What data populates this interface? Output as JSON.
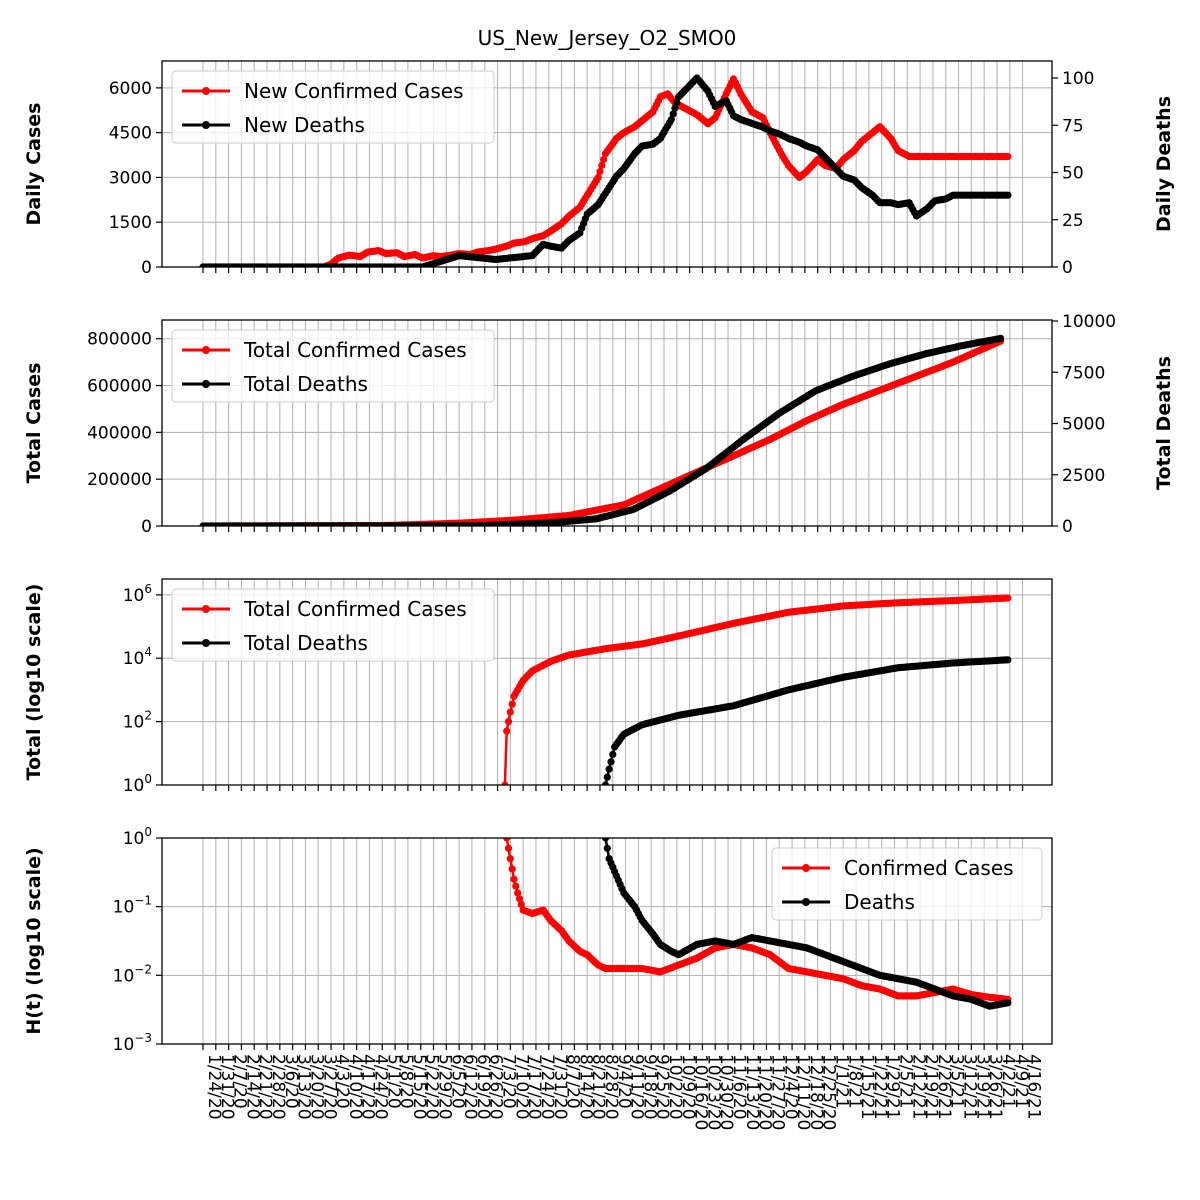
{
  "figure_title": "US_New_Jersey_O2_SMO0",
  "colors": {
    "cases": "#ff0000",
    "deaths": "#000000",
    "grid": "#b0b0b0"
  },
  "chart_data": [
    {
      "type": "line",
      "panel": "daily",
      "ylabel": "Daily Cases",
      "ylabel_right": "Daily Deaths",
      "left_ticks": [
        "0",
        "1500",
        "3000",
        "4500",
        "6000"
      ],
      "right_ticks": [
        "0",
        "25",
        "50",
        "75",
        "100"
      ],
      "ylim": [
        0,
        6900
      ],
      "ylim_right": [
        0,
        109
      ],
      "grid": true,
      "legend_position": "upper-left",
      "series": [
        {
          "name": "New Confirmed Cases",
          "axis": "left",
          "color": "#ff0000",
          "x_days": [
            0,
            66,
            70,
            74,
            80,
            86,
            90,
            96,
            100,
            106,
            110,
            116,
            120,
            126,
            130,
            136,
            140,
            146,
            150,
            156,
            160,
            166,
            170,
            176,
            180,
            186,
            190,
            196,
            200,
            206,
            210,
            216,
            220,
            226,
            230,
            236,
            240,
            246,
            250,
            254,
            258,
            264,
            270,
            276,
            280,
            286,
            290,
            294,
            300,
            306,
            310,
            316,
            320,
            326,
            330,
            336,
            340,
            346,
            350,
            356,
            360,
            366,
            370,
            376,
            380,
            386,
            390,
            396,
            400,
            406,
            410,
            416,
            420,
            426,
            430,
            436,
            440
          ],
          "values": [
            0,
            0,
            100,
            300,
            400,
            350,
            500,
            550,
            450,
            480,
            350,
            420,
            300,
            380,
            350,
            400,
            450,
            420,
            500,
            550,
            600,
            700,
            800,
            850,
            950,
            1050,
            1200,
            1450,
            1700,
            2000,
            2400,
            3000,
            3800,
            4300,
            4500,
            4700,
            4900,
            5200,
            5700,
            5800,
            5500,
            5300,
            5100,
            4800,
            5000,
            5800,
            6300,
            5800,
            5200,
            5000,
            4500,
            3800,
            3400,
            3000,
            3200,
            3600,
            3400,
            3300,
            3600,
            3900,
            4200,
            4500,
            4700,
            4300,
            3900,
            3700,
            3700,
            3700,
            3700,
            3700,
            3700,
            3700,
            3700,
            3700,
            3700,
            3700,
            3700
          ]
        },
        {
          "name": "New Deaths",
          "axis": "right",
          "color": "#000000",
          "x_days": [
            0,
            120,
            130,
            140,
            150,
            160,
            170,
            180,
            186,
            190,
            196,
            200,
            206,
            210,
            216,
            220,
            226,
            230,
            236,
            240,
            246,
            250,
            256,
            260,
            266,
            270,
            276,
            280,
            286,
            290,
            294,
            300,
            306,
            310,
            316,
            320,
            326,
            330,
            336,
            340,
            346,
            350,
            356,
            360,
            366,
            370,
            376,
            380,
            386,
            390,
            396,
            400,
            406,
            410,
            416,
            420,
            426,
            430,
            436,
            440
          ],
          "values": [
            0,
            0,
            3,
            6,
            5,
            4,
            5,
            6,
            12,
            11,
            10,
            14,
            18,
            28,
            33,
            39,
            48,
            52,
            60,
            64,
            65,
            68,
            78,
            90,
            96,
            100,
            93,
            85,
            88,
            80,
            78,
            76,
            74,
            72,
            70,
            68,
            66,
            64,
            62,
            58,
            52,
            48,
            46,
            42,
            38,
            34,
            34,
            33,
            34,
            27,
            31,
            35,
            36,
            38,
            38,
            38,
            38,
            38,
            38,
            38
          ]
        }
      ]
    },
    {
      "type": "line",
      "panel": "total",
      "ylabel": "Total Cases",
      "ylabel_right": "Total Deaths",
      "left_ticks": [
        "0",
        "200000",
        "400000",
        "600000",
        "800000"
      ],
      "right_ticks": [
        "0",
        "2500",
        "5000",
        "7500",
        "10000"
      ],
      "ylim": [
        0,
        880000
      ],
      "ylim_right": [
        0,
        10050
      ],
      "grid": true,
      "legend_position": "upper-left",
      "series": [
        {
          "name": "Total Confirmed Cases",
          "axis": "left",
          "color": "#ff0000",
          "x_days": [
            0,
            100,
            140,
            170,
            200,
            230,
            250,
            270,
            290,
            310,
            330,
            350,
            370,
            390,
            410,
            436
          ],
          "values": [
            0,
            2000,
            12000,
            25000,
            45000,
            90000,
            160000,
            230000,
            300000,
            370000,
            450000,
            520000,
            580000,
            640000,
            700000,
            790000
          ]
        },
        {
          "name": "Total Deaths",
          "axis": "right",
          "color": "#000000",
          "x_days": [
            0,
            150,
            190,
            215,
            235,
            255,
            275,
            295,
            315,
            335,
            355,
            375,
            395,
            415,
            436
          ],
          "values": [
            0,
            10,
            150,
            350,
            800,
            1700,
            2800,
            4200,
            5500,
            6600,
            7300,
            7900,
            8400,
            8800,
            9150
          ]
        }
      ]
    },
    {
      "type": "line",
      "panel": "log_total",
      "ylabel": "Total (log10 scale)",
      "scale": "log10",
      "left_ticks": [
        {
          "base": "10",
          "exp": "0"
        },
        {
          "base": "10",
          "exp": "2"
        },
        {
          "base": "10",
          "exp": "4"
        },
        {
          "base": "10",
          "exp": "6"
        }
      ],
      "ylim_log10": [
        0,
        6.5
      ],
      "grid": true,
      "legend_position": "upper-left",
      "series": [
        {
          "name": "Total Confirmed Cases",
          "color": "#ff0000",
          "x_days": [
            165,
            166,
            168,
            170,
            175,
            180,
            190,
            200,
            220,
            240,
            260,
            290,
            320,
            350,
            380,
            410,
            440
          ],
          "log10_values": [
            0,
            1.7,
            2.3,
            2.8,
            3.3,
            3.6,
            3.9,
            4.1,
            4.3,
            4.45,
            4.7,
            5.1,
            5.45,
            5.65,
            5.75,
            5.82,
            5.9
          ]
        },
        {
          "name": "Total Deaths",
          "color": "#000000",
          "x_days": [
            220,
            222,
            225,
            230,
            240,
            260,
            290,
            320,
            350,
            380,
            410,
            440
          ],
          "log10_values": [
            0,
            0.5,
            1.2,
            1.6,
            1.9,
            2.2,
            2.5,
            3.0,
            3.4,
            3.7,
            3.85,
            3.95
          ]
        }
      ]
    },
    {
      "type": "line",
      "panel": "h_t",
      "ylabel": "H(t) (log10 scale)",
      "scale": "log10",
      "left_ticks": [
        {
          "base": "10",
          "exp": "0"
        },
        {
          "base": "10",
          "exp": "−1"
        },
        {
          "base": "10",
          "exp": "−2"
        },
        {
          "base": "10",
          "exp": "−3"
        }
      ],
      "ylim_log10": [
        -3,
        0
      ],
      "grid": true,
      "legend_position": "upper-right",
      "series": [
        {
          "name": "Confirmed Cases",
          "color": "#ff0000",
          "x_days": [
            166,
            168,
            170,
            172,
            175,
            180,
            186,
            190,
            196,
            200,
            206,
            210,
            216,
            220,
            230,
            240,
            250,
            260,
            270,
            280,
            290,
            300,
            310,
            320,
            330,
            340,
            350,
            360,
            370,
            380,
            390,
            400,
            410,
            420,
            430,
            440
          ],
          "log10_values": [
            0,
            -0.3,
            -0.6,
            -0.8,
            -1.05,
            -1.1,
            -1.05,
            -1.2,
            -1.35,
            -1.5,
            -1.65,
            -1.7,
            -1.85,
            -1.9,
            -1.9,
            -1.9,
            -1.95,
            -1.85,
            -1.75,
            -1.6,
            -1.55,
            -1.6,
            -1.7,
            -1.9,
            -1.95,
            -2.0,
            -2.05,
            -2.15,
            -2.2,
            -2.3,
            -2.3,
            -2.25,
            -2.2,
            -2.28,
            -2.32,
            -2.35
          ]
        },
        {
          "name": "Deaths",
          "color": "#000000",
          "x_days": [
            220,
            222,
            226,
            230,
            236,
            240,
            246,
            250,
            256,
            260,
            270,
            280,
            290,
            300,
            310,
            320,
            330,
            340,
            350,
            360,
            370,
            380,
            390,
            400,
            410,
            420,
            430,
            440
          ],
          "log10_values": [
            0,
            -0.3,
            -0.55,
            -0.8,
            -1.0,
            -1.2,
            -1.4,
            -1.55,
            -1.65,
            -1.7,
            -1.55,
            -1.5,
            -1.55,
            -1.45,
            -1.5,
            -1.55,
            -1.6,
            -1.7,
            -1.8,
            -1.9,
            -2.0,
            -2.05,
            -2.1,
            -2.2,
            -2.3,
            -2.35,
            -2.45,
            -2.4
          ]
        }
      ]
    }
  ],
  "x_tick_labels": [
    "1/24/20",
    "1/31/20",
    "2/7/20",
    "2/14/20",
    "2/21/20",
    "2/28/20",
    "3/6/20",
    "3/13/20",
    "3/20/20",
    "3/27/20",
    "4/3/20",
    "4/10/20",
    "4/17/20",
    "4/24/20",
    "5/1/20",
    "5/8/20",
    "5/15/20",
    "5/22/20",
    "5/29/20",
    "6/5/20",
    "6/12/20",
    "6/19/20",
    "6/26/20",
    "7/3/20",
    "7/10/20",
    "7/17/20",
    "7/24/20",
    "7/31/20",
    "8/7/20",
    "8/14/20",
    "8/21/20",
    "8/28/20",
    "9/4/20",
    "9/11/20",
    "9/18/20",
    "9/25/20",
    "10/2/20",
    "10/9/20",
    "10/16/20",
    "10/23/20",
    "10/30/20",
    "11/6/20",
    "11/13/20",
    "11/20/20",
    "11/27/20",
    "12/4/20",
    "12/11/20",
    "12/18/20",
    "12/25/20",
    "1/1/21",
    "1/8/21",
    "1/15/21",
    "1/22/21",
    "1/29/21",
    "2/5/21",
    "2/12/21",
    "2/19/21",
    "2/26/21",
    "3/5/21",
    "3/12/21",
    "3/19/21",
    "3/26/21",
    "4/2/21",
    "4/9/21",
    "4/16/21"
  ],
  "x_tick_step_days": 7
}
